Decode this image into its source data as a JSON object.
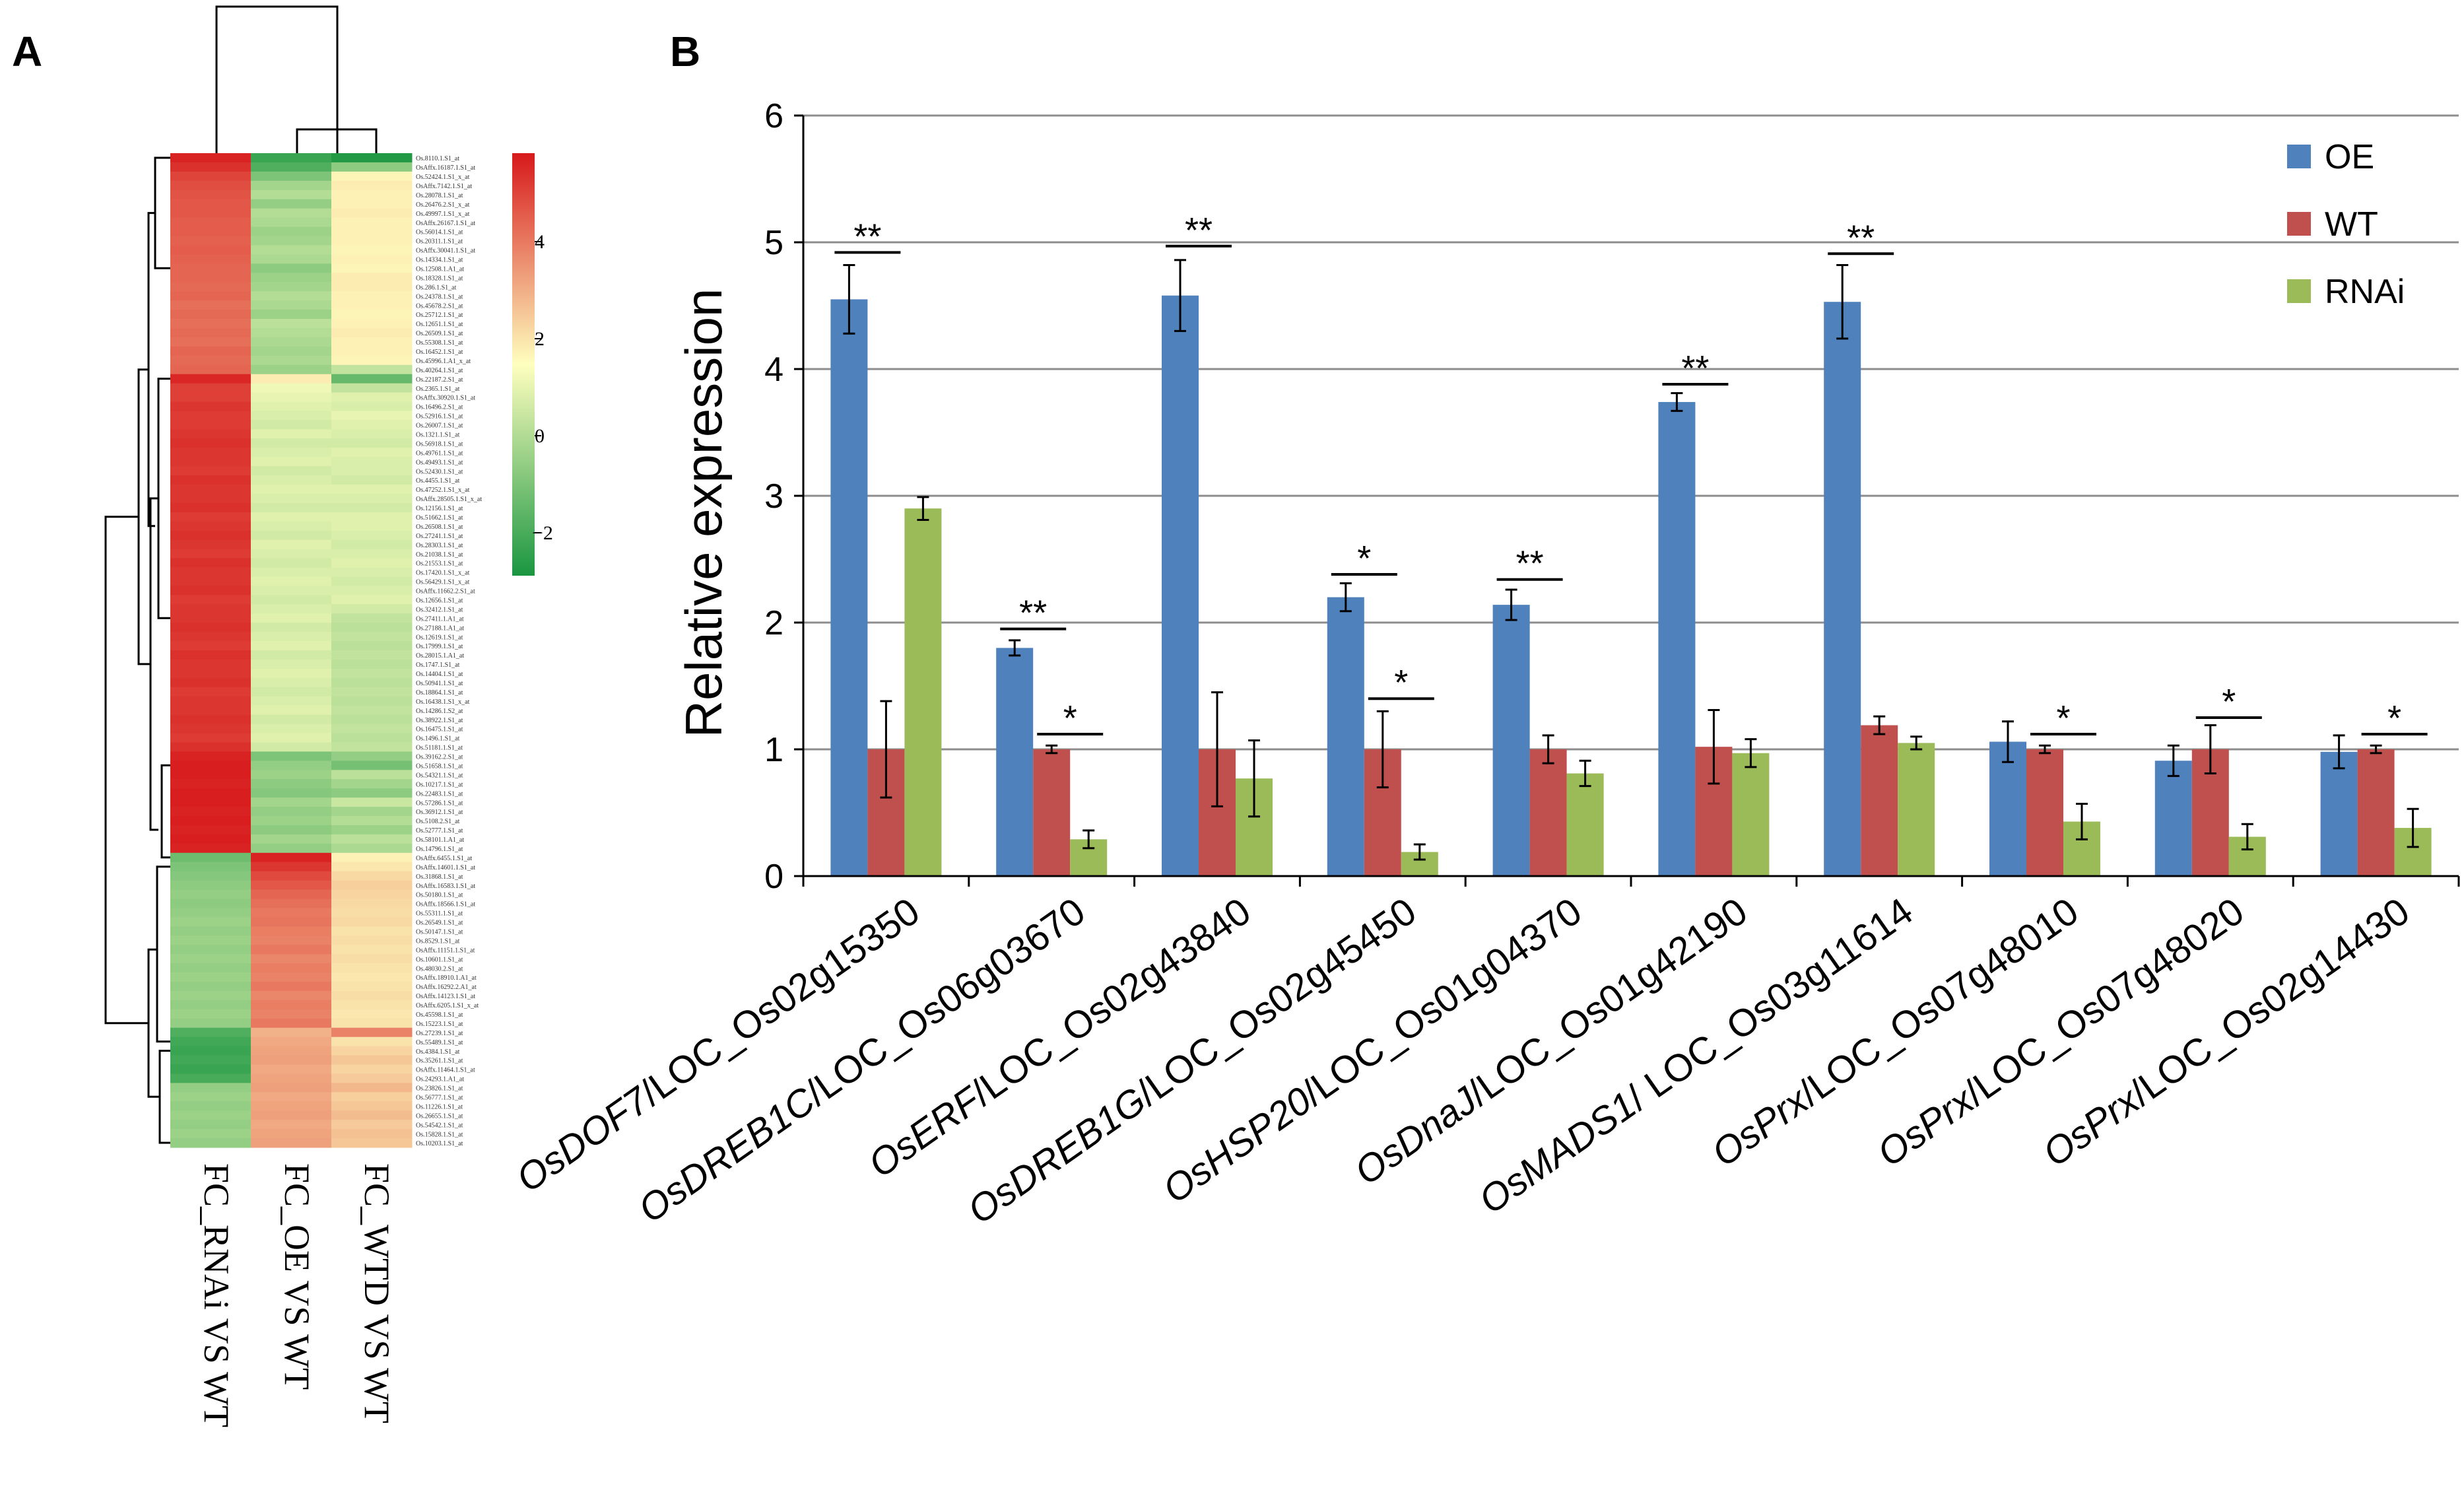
{
  "panels": {
    "a": "A",
    "b": "B"
  },
  "heatmap": {
    "columns": [
      "FC_RNAi VS WT",
      "FC_OE VS WT",
      "FC_WTD VS WT"
    ],
    "colorbar_ticks": [
      "4",
      "2",
      "0",
      "−2"
    ],
    "colors": {
      "high": "#d7191c",
      "mid": "#ffffbf",
      "low": "#1a9641"
    },
    "rows": [
      {
        "id": "Os.8110.1.S1_at",
        "v": [
          4.6,
          -2.6,
          -2.9
        ]
      },
      {
        "id": "OsAffx.16187.1.S1_at",
        "v": [
          4.3,
          -2.3,
          -1.5
        ]
      },
      {
        "id": "Os.52424.1.S1_x_at",
        "v": [
          3.9,
          -1.7,
          0.2
        ]
      },
      {
        "id": "OsAffx.7142.1.S1_at",
        "v": [
          3.7,
          -1.2,
          0.4
        ]
      },
      {
        "id": "Os.28078.1.S1_at",
        "v": [
          3.6,
          -1.0,
          0.3
        ]
      },
      {
        "id": "Os.26476.2.S1_x_at",
        "v": [
          3.5,
          -1.4,
          0.3
        ]
      },
      {
        "id": "Os.49997.1.S1_x_at",
        "v": [
          3.5,
          -1.0,
          0.4
        ]
      },
      {
        "id": "OsAffx.26167.1.S1_at",
        "v": [
          3.4,
          -1.1,
          0.3
        ]
      },
      {
        "id": "Os.56014.1.S1_at",
        "v": [
          3.4,
          -1.3,
          0.3
        ]
      },
      {
        "id": "Os.20311.1.S1_at",
        "v": [
          3.3,
          -1.2,
          0.3
        ]
      },
      {
        "id": "OsAffx.30041.1.S1_at",
        "v": [
          3.4,
          -1.0,
          0.2
        ]
      },
      {
        "id": "Os.14334.1.S1_at",
        "v": [
          3.3,
          -1.1,
          0.3
        ]
      },
      {
        "id": "Os.12508.1.A1_at",
        "v": [
          3.2,
          -1.5,
          0.2
        ]
      },
      {
        "id": "Os.18328.1.S1_at",
        "v": [
          3.2,
          -1.3,
          0.4
        ]
      },
      {
        "id": "Os.286.1.S1_at",
        "v": [
          3.1,
          -1.2,
          0.4
        ]
      },
      {
        "id": "Os.24378.1.S1_at",
        "v": [
          3.2,
          -1.0,
          0.3
        ]
      },
      {
        "id": "Os.45678.2.S1_at",
        "v": [
          3.0,
          -1.1,
          0.3
        ]
      },
      {
        "id": "Os.25712.1.S1_at",
        "v": [
          3.1,
          -1.3,
          0.2
        ]
      },
      {
        "id": "Os.12651.1.S1_at",
        "v": [
          3.0,
          -0.9,
          0.3
        ]
      },
      {
        "id": "Os.26509.1.S1_at",
        "v": [
          3.1,
          -1.0,
          0.4
        ]
      },
      {
        "id": "Os.55308.1.S1_at",
        "v": [
          3.0,
          -1.1,
          0.3
        ]
      },
      {
        "id": "Os.16452.1.S1_at",
        "v": [
          3.2,
          -1.2,
          0.3
        ]
      },
      {
        "id": "Os.45996.1.A1_x_at",
        "v": [
          3.1,
          -1.1,
          0.2
        ]
      },
      {
        "id": "Os.40264.1.S1_at",
        "v": [
          3.2,
          -1.3,
          -0.8
        ]
      },
      {
        "id": "Os.22187.2.S1_at",
        "v": [
          4.5,
          0.4,
          -2.0
        ]
      },
      {
        "id": "Os.2365.1.S1_at",
        "v": [
          4.0,
          -0.2,
          -0.8
        ]
      },
      {
        "id": "OsAffx.30920.1.S1_at",
        "v": [
          4.0,
          -0.3,
          -0.4
        ]
      },
      {
        "id": "Os.16496.2.S1_at",
        "v": [
          4.2,
          -0.4,
          -0.5
        ]
      },
      {
        "id": "Os.52916.1.S1_at",
        "v": [
          4.1,
          -0.5,
          -0.3
        ]
      },
      {
        "id": "Os.26007.1.S1_at",
        "v": [
          4.1,
          -0.6,
          -0.4
        ]
      },
      {
        "id": "Os.1321.1.S1_at",
        "v": [
          4.2,
          -0.4,
          -0.5
        ]
      },
      {
        "id": "Os.56918.1.S1_at",
        "v": [
          4.3,
          -0.6,
          -0.6
        ]
      },
      {
        "id": "Os.49761.1.S1_at",
        "v": [
          4.2,
          -0.5,
          -0.4
        ]
      },
      {
        "id": "Os.49493.1.S1_at",
        "v": [
          4.2,
          -0.4,
          -0.5
        ]
      },
      {
        "id": "Os.52430.1.S1_at",
        "v": [
          4.1,
          -0.6,
          -0.5
        ]
      },
      {
        "id": "Os.4455.1.S1_at",
        "v": [
          4.3,
          -0.5,
          -0.6
        ]
      },
      {
        "id": "Os.47252.1.S1_x_at",
        "v": [
          4.2,
          -0.4,
          -0.4
        ]
      },
      {
        "id": "OsAffx.28505.1.S1_x_at",
        "v": [
          4.2,
          -0.5,
          -0.5
        ]
      },
      {
        "id": "Os.12156.1.S1_at",
        "v": [
          4.3,
          -0.6,
          -0.6
        ]
      },
      {
        "id": "Os.51662.1.S1_at",
        "v": [
          4.1,
          -0.4,
          -0.4
        ]
      },
      {
        "id": "Os.26508.1.S1_at",
        "v": [
          4.2,
          -0.5,
          -0.4
        ]
      },
      {
        "id": "Os.27241.1.S1_at",
        "v": [
          4.3,
          -0.6,
          -0.5
        ]
      },
      {
        "id": "Os.28303.1.S1_at",
        "v": [
          4.2,
          -0.4,
          -0.6
        ]
      },
      {
        "id": "Os.21038.1.S1_at",
        "v": [
          4.1,
          -0.5,
          -0.5
        ]
      },
      {
        "id": "Os.21553.1.S1_at",
        "v": [
          4.3,
          -0.6,
          -0.4
        ]
      },
      {
        "id": "Os.17420.1.S1_x_at",
        "v": [
          4.2,
          -0.5,
          -0.5
        ]
      },
      {
        "id": "Os.56429.1.S1_x_at",
        "v": [
          4.2,
          -0.4,
          -0.6
        ]
      },
      {
        "id": "OsAffx.11662.2.S1_at",
        "v": [
          4.3,
          -0.5,
          -0.5
        ]
      },
      {
        "id": "Os.12656.1.S1_at",
        "v": [
          4.1,
          -0.6,
          -0.4
        ]
      },
      {
        "id": "Os.32412.1.S1_at",
        "v": [
          4.2,
          -0.5,
          -0.6
        ]
      },
      {
        "id": "Os.27411.1.A1_at",
        "v": [
          4.2,
          -0.4,
          -0.8
        ]
      },
      {
        "id": "Os.27188.1.A1_at",
        "v": [
          4.3,
          -0.6,
          -0.9
        ]
      },
      {
        "id": "Os.12619.1.S1_at",
        "v": [
          4.2,
          -0.5,
          -0.8
        ]
      },
      {
        "id": "Os.17999.1.S1_at",
        "v": [
          4.1,
          -0.4,
          -0.9
        ]
      },
      {
        "id": "Os.28015.1.A1_at",
        "v": [
          4.3,
          -0.6,
          -0.8
        ]
      },
      {
        "id": "Os.1747.1.S1_at",
        "v": [
          4.2,
          -0.5,
          -0.9
        ]
      },
      {
        "id": "Os.14404.1.S1_at",
        "v": [
          4.2,
          -0.4,
          -0.8
        ]
      },
      {
        "id": "Os.50941.1.S1_at",
        "v": [
          4.3,
          -0.5,
          -0.9
        ]
      },
      {
        "id": "Os.18864.1.S1_at",
        "v": [
          4.1,
          -0.6,
          -0.8
        ]
      },
      {
        "id": "Os.16438.1.S1_x_at",
        "v": [
          4.2,
          -0.5,
          -0.9
        ]
      },
      {
        "id": "Os.14286.1.S2_at",
        "v": [
          4.2,
          -0.4,
          -0.8
        ]
      },
      {
        "id": "Os.38922.1.S1_at",
        "v": [
          4.3,
          -0.6,
          -0.9
        ]
      },
      {
        "id": "Os.16475.1.S1_at",
        "v": [
          4.2,
          -0.5,
          -0.8
        ]
      },
      {
        "id": "Os.1496.1.S1_at",
        "v": [
          4.1,
          -0.4,
          -0.9
        ]
      },
      {
        "id": "Os.51181.1.S1_at",
        "v": [
          4.3,
          -0.6,
          -0.8
        ]
      },
      {
        "id": "Os.39162.2.S1_at",
        "v": [
          4.6,
          -1.7,
          -1.4
        ]
      },
      {
        "id": "Os.51658.1.S1_at",
        "v": [
          4.7,
          -1.4,
          -1.8
        ]
      },
      {
        "id": "Os.54321.1.S1_at",
        "v": [
          4.7,
          -1.3,
          -0.9
        ]
      },
      {
        "id": "Os.10217.1.S1_at",
        "v": [
          4.6,
          -1.5,
          -1.2
        ]
      },
      {
        "id": "Os.22483.1.S1_at",
        "v": [
          4.7,
          -1.6,
          -1.5
        ]
      },
      {
        "id": "Os.57286.1.S1_at",
        "v": [
          4.7,
          -1.2,
          -0.7
        ]
      },
      {
        "id": "Os.36912.1.S1_at",
        "v": [
          4.6,
          -1.4,
          -1.2
        ]
      },
      {
        "id": "Os.5108.2.S1_at",
        "v": [
          4.7,
          -1.3,
          -1.0
        ]
      },
      {
        "id": "Os.52777.1.S1_at",
        "v": [
          4.6,
          -1.5,
          -1.3
        ]
      },
      {
        "id": "Os.58101.1.A1_at",
        "v": [
          4.7,
          -1.2,
          -0.9
        ]
      },
      {
        "id": "Os.14796.1.S1_at",
        "v": [
          4.6,
          -1.4,
          -1.1
        ]
      },
      {
        "id": "OsAffx.6455.1.S1_at",
        "v": [
          -1.9,
          4.6,
          0.3
        ]
      },
      {
        "id": "OsAffx.14601.1.S1_at",
        "v": [
          -1.7,
          4.2,
          0.5
        ]
      },
      {
        "id": "Os.31868.1.S1_at",
        "v": [
          -1.6,
          3.8,
          0.8
        ]
      },
      {
        "id": "OsAffx.16583.1.S1_at",
        "v": [
          -1.5,
          3.5,
          1.0
        ]
      },
      {
        "id": "Os.50180.1.S1_at",
        "v": [
          -1.4,
          3.2,
          0.9
        ]
      },
      {
        "id": "OsAffx.18566.1.S1_at",
        "v": [
          -1.5,
          3.0,
          0.8
        ]
      },
      {
        "id": "Os.55311.1.S1_at",
        "v": [
          -1.4,
          2.8,
          0.7
        ]
      },
      {
        "id": "Os.26549.1.S1_at",
        "v": [
          -1.3,
          2.9,
          0.8
        ]
      },
      {
        "id": "Os.50147.1.S1_at",
        "v": [
          -1.4,
          2.7,
          0.6
        ]
      },
      {
        "id": "Os.8529.1.S1_at",
        "v": [
          -1.3,
          2.6,
          0.7
        ]
      },
      {
        "id": "OsAffx.11151.1.S1_at",
        "v": [
          -1.4,
          2.8,
          0.6
        ]
      },
      {
        "id": "Os.10601.1.S1_at",
        "v": [
          -1.3,
          2.5,
          0.7
        ]
      },
      {
        "id": "Os.48030.2.S1_at",
        "v": [
          -1.4,
          2.7,
          0.6
        ]
      },
      {
        "id": "OsAffx.18910.1.A1_at",
        "v": [
          -1.3,
          2.6,
          0.5
        ]
      },
      {
        "id": "OsAffx.16292.2.A1_at",
        "v": [
          -1.4,
          2.8,
          0.6
        ]
      },
      {
        "id": "OsAffx.14123.1.S1_at",
        "v": [
          -1.3,
          2.5,
          0.7
        ]
      },
      {
        "id": "OsAffx.6205.1.S1_x_at",
        "v": [
          -1.4,
          2.7,
          0.6
        ]
      },
      {
        "id": "Os.45598.1.S1_at",
        "v": [
          -1.3,
          2.6,
          0.5
        ]
      },
      {
        "id": "Os.15223.1.S1_at",
        "v": [
          -1.4,
          2.8,
          0.6
        ]
      },
      {
        "id": "Os.27239.1.S1_at",
        "v": [
          -2.3,
          1.6,
          2.6
        ]
      },
      {
        "id": "Os.55489.1.S1_at",
        "v": [
          -2.5,
          1.8,
          0.6
        ]
      },
      {
        "id": "Os.4384.1.S1_at",
        "v": [
          -2.6,
          1.9,
          0.9
        ]
      },
      {
        "id": "Os.35261.1.S1_at",
        "v": [
          -2.5,
          2.0,
          1.2
        ]
      },
      {
        "id": "OsAffx.11464.1.S1_at",
        "v": [
          -2.6,
          1.8,
          0.9
        ]
      },
      {
        "id": "Os.24293.1.A1_at",
        "v": [
          -2.4,
          1.9,
          1.1
        ]
      },
      {
        "id": "Os.23826.1.S1_at",
        "v": [
          -1.4,
          2.0,
          1.5
        ]
      },
      {
        "id": "Os.56777.1.S1_at",
        "v": [
          -1.3,
          1.8,
          1.0
        ]
      },
      {
        "id": "Os.11226.1.S1_at",
        "v": [
          -1.4,
          1.9,
          1.2
        ]
      },
      {
        "id": "Os.26655.1.S1_at",
        "v": [
          -1.3,
          2.0,
          1.4
        ]
      },
      {
        "id": "Os.54542.1.S1_at",
        "v": [
          -1.4,
          1.8,
          1.1
        ]
      },
      {
        "id": "Os.15828.1.S1_at",
        "v": [
          -1.3,
          1.9,
          1.3
        ]
      },
      {
        "id": "Os.10203.1.S1_at",
        "v": [
          -1.4,
          2.0,
          1.2
        ]
      }
    ]
  },
  "chart_data": {
    "type": "bar",
    "title": "",
    "xlabel": "",
    "ylabel": "Relative expression",
    "ylim": [
      0,
      6
    ],
    "yticks": [
      "0",
      "1",
      "2",
      "3",
      "4",
      "5",
      "6"
    ],
    "grid": true,
    "legend_position": "top-right",
    "categories": [
      {
        "italic": "OsDOF7",
        "rest": "/LOC_Os02g15350"
      },
      {
        "italic": "OsDREB1C",
        "rest": "/LOC_Os06g03670"
      },
      {
        "italic": "OsERF",
        "rest": "/LOC_Os02g43840"
      },
      {
        "italic": "OsDREB1G",
        "rest": "/LOC_Os02g45450"
      },
      {
        "italic": "OsHSP20",
        "rest": "/LOC_Os01g04370"
      },
      {
        "italic": "OsDnaJ",
        "rest": "/LOC_Os01g42190"
      },
      {
        "italic": "OsMADS1",
        "rest": "/ LOC_Os03g11614"
      },
      {
        "italic": "OsPrx",
        "rest": "/LOC_Os07g48010"
      },
      {
        "italic": "OsPrx",
        "rest": "/LOC_Os07g48020"
      },
      {
        "italic": "OsPrx",
        "rest": "/LOC_Os02g14430"
      }
    ],
    "series": [
      {
        "name": "OE",
        "color": "#4f81bd",
        "values": [
          4.55,
          1.8,
          4.58,
          2.2,
          2.14,
          3.74,
          4.53,
          1.06,
          0.91,
          0.98
        ],
        "errors": [
          0.27,
          0.06,
          0.28,
          0.11,
          0.12,
          0.07,
          0.29,
          0.16,
          0.12,
          0.13
        ]
      },
      {
        "name": "WT",
        "color": "#c0504d",
        "values": [
          1.0,
          1.0,
          1.0,
          1.0,
          1.0,
          1.02,
          1.19,
          1.0,
          1.0,
          1.0
        ],
        "errors": [
          0.38,
          0.03,
          0.45,
          0.3,
          0.11,
          0.29,
          0.07,
          0.03,
          0.19,
          0.03
        ]
      },
      {
        "name": "RNAi",
        "color": "#9bbb59",
        "values": [
          2.9,
          0.29,
          0.77,
          0.19,
          0.81,
          0.97,
          1.05,
          0.43,
          0.31,
          0.38
        ],
        "errors": [
          0.09,
          0.07,
          0.3,
          0.06,
          0.1,
          0.11,
          0.05,
          0.14,
          0.1,
          0.15
        ]
      }
    ],
    "significance": [
      {
        "category": 0,
        "label": "**",
        "pair": "OE-WT",
        "y": 4.92
      },
      {
        "category": 1,
        "label": "**",
        "pair": "OE-WT",
        "y": 1.95
      },
      {
        "category": 1,
        "label": "*",
        "pair": "WT-RNAi",
        "y": 1.12
      },
      {
        "category": 2,
        "label": "**",
        "pair": "OE-WT",
        "y": 4.97
      },
      {
        "category": 3,
        "label": "*",
        "pair": "OE-WT",
        "y": 2.38
      },
      {
        "category": 3,
        "label": "*",
        "pair": "WT-RNAi",
        "y": 1.4
      },
      {
        "category": 4,
        "label": "**",
        "pair": "OE-WT",
        "y": 2.34
      },
      {
        "category": 5,
        "label": "**",
        "pair": "OE-WT",
        "y": 3.88
      },
      {
        "category": 6,
        "label": "**",
        "pair": "OE-WT",
        "y": 4.91
      },
      {
        "category": 7,
        "label": "*",
        "pair": "WT-RNAi",
        "y": 1.12
      },
      {
        "category": 8,
        "label": "*",
        "pair": "WT-RNAi",
        "y": 1.25
      },
      {
        "category": 9,
        "label": "*",
        "pair": "WT-RNAi",
        "y": 1.12
      }
    ]
  }
}
